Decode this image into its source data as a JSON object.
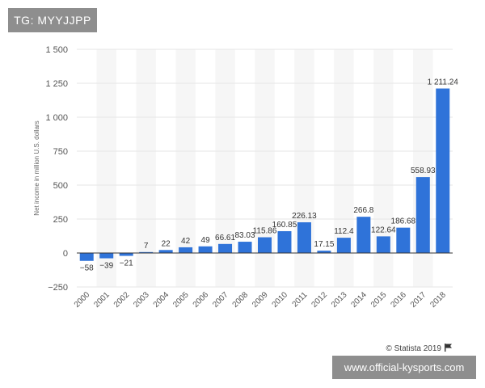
{
  "watermark_top": "TG: MYYJJPP",
  "watermark_bottom": "www.official-kysports.com",
  "credit": "© Statista 2019",
  "colors": {
    "bar": "#2f73d9",
    "grid": "#e6e6e6",
    "band": "#f6f6f6"
  },
  "chart_data": {
    "type": "bar",
    "title": "",
    "xlabel": "",
    "ylabel": "Net income in million U.S. dollars",
    "categories": [
      "2000",
      "2001",
      "2002",
      "2003",
      "2004",
      "2005",
      "2006",
      "2007",
      "2008",
      "2009",
      "2010",
      "2011",
      "2012",
      "2013",
      "2014",
      "2015",
      "2016",
      "2017",
      "2018"
    ],
    "values": [
      -58,
      -39,
      -21,
      7,
      22,
      42,
      49,
      66.61,
      83.03,
      115.86,
      160.85,
      226.13,
      17.15,
      112.4,
      266.8,
      122.64,
      186.68,
      558.93,
      1211.24
    ],
    "value_labels": [
      "−58",
      "−39",
      "−21",
      "7",
      "22",
      "42",
      "49",
      "66.61",
      "83.03",
      "115.86",
      "160.85",
      "226.13",
      "17.15",
      "112.4",
      "266.8",
      "122.64",
      "186.68",
      "558.93",
      "1 211.24"
    ],
    "yticks": [
      -250,
      0,
      250,
      500,
      750,
      1000,
      1250,
      1500
    ],
    "ytick_labels": [
      "−250",
      "0",
      "250",
      "500",
      "750",
      "1 000",
      "1 250",
      "1 500"
    ],
    "ylim": [
      -250,
      1500
    ],
    "grid": true
  }
}
